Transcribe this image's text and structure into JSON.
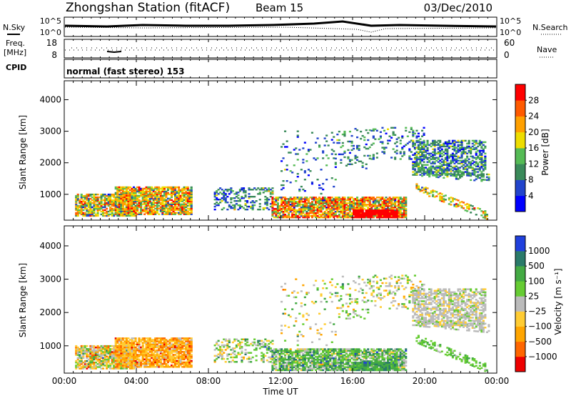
{
  "header": {
    "station": "Zhongshan Station (fitACF)",
    "beam": "Beam 15",
    "date": "03/Dec/2010"
  },
  "status_panels": {
    "nsky_label": "N.Sky",
    "nsearch_label": "N.Search",
    "freq_label": "Freq.",
    "freq_unit": "[MHz]",
    "nave_label": "Nave",
    "cpid_label": "CPID",
    "cpid_text": "normal (fast stereo) 153",
    "noise_ticks": [
      "10^5",
      "10^0"
    ],
    "freq_ticks": [
      "18",
      "8"
    ],
    "nave_ticks": [
      "60",
      "0"
    ]
  },
  "chart_data": [
    {
      "type": "heatmap",
      "name": "power",
      "ylabel": "Slant Range [km]",
      "colorbar_label": "Power [dB]",
      "yticks": [
        "1000",
        "2000",
        "3000",
        "4000"
      ],
      "ylim": [
        180,
        4600
      ],
      "colorbar_ticks": [
        "28",
        "24",
        "20",
        "16",
        "12",
        "8",
        "4"
      ],
      "colors": [
        "#0000ff",
        "#2244cc",
        "#3a8a5a",
        "#55bb55",
        "#eedd00",
        "#ffa000",
        "#ff5a00",
        "#ff0000"
      ],
      "cell_hours": 0.1,
      "cell_km": 45,
      "regions": [
        {
          "t": [
            0.6,
            4.0
          ],
          "r": [
            300,
            1000
          ],
          "c": 0.55,
          "s": 0.3,
          "d": 0.75
        },
        {
          "t": [
            2.8,
            7.0
          ],
          "r": [
            350,
            1250
          ],
          "c": 0.6,
          "s": 0.3,
          "d": 0.8
        },
        {
          "t": [
            8.3,
            11.5
          ],
          "r": [
            500,
            1200
          ],
          "c": 0.3,
          "s": 0.2,
          "d": 0.35
        },
        {
          "t": [
            11.5,
            19.0
          ],
          "r": [
            250,
            900
          ],
          "c": 0.65,
          "s": 0.35,
          "d": 0.8
        },
        {
          "t": [
            16.0,
            18.5
          ],
          "r": [
            250,
            500
          ],
          "c": 0.95,
          "s": 0.05,
          "d": 0.9
        },
        {
          "t": [
            12.0,
            15.0
          ],
          "r": [
            1000,
            3000
          ],
          "c": 0.25,
          "s": 0.15,
          "d": 0.06
        },
        {
          "t": [
            15.0,
            17.0
          ],
          "r": [
            1800,
            3100
          ],
          "c": 0.3,
          "s": 0.15,
          "d": 0.15
        },
        {
          "t": [
            17.0,
            20.0
          ],
          "r": [
            2100,
            3100
          ],
          "c": 0.3,
          "s": 0.2,
          "d": 0.18
        },
        {
          "t": [
            19.3,
            23.4
          ],
          "r": [
            1600,
            2700
          ],
          "c": 0.3,
          "s": 0.2,
          "d": 0.55
        },
        {
          "t": [
            19.5,
            23.6
          ],
          "r": [
            1700,
            1500
          ],
          "c": 0.35,
          "s": 0.15,
          "d": 0.4
        },
        {
          "t": [
            19.5,
            23.5
          ],
          "r": [
            1200,
            300
          ],
          "c": 0.55,
          "s": 0.25,
          "d": 0.45
        }
      ]
    },
    {
      "type": "heatmap",
      "name": "velocity",
      "ylabel": "Slant Range [km]",
      "xlabel": "Time UT",
      "colorbar_label": "Velocity [m s⁻¹]",
      "yticks": [
        "1000",
        "2000",
        "3000",
        "4000"
      ],
      "ylim": [
        180,
        4600
      ],
      "xticks": [
        "00:00",
        "04:00",
        "08:00",
        "12:00",
        "16:00",
        "20:00",
        "00:00"
      ],
      "xlim_hours": [
        0,
        24
      ],
      "colorbar_ticks": [
        "1000",
        "500",
        "100",
        "25",
        "−25",
        "−100",
        "−500",
        "−1000"
      ],
      "colors": [
        "#ee0000",
        "#ff6600",
        "#ffa500",
        "#ffcc33",
        "#bbbbbb",
        "#66cc33",
        "#44aa44",
        "#2a7a6a",
        "#2040dd"
      ],
      "cell_hours": 0.1,
      "cell_km": 45,
      "regions": [
        {
          "t": [
            0.6,
            4.0
          ],
          "r": [
            300,
            1000
          ],
          "c": 0.45,
          "s": 0.25,
          "d": 0.8
        },
        {
          "t": [
            2.8,
            7.0
          ],
          "r": [
            350,
            1250
          ],
          "c": 0.3,
          "s": 0.15,
          "d": 0.85
        },
        {
          "t": [
            8.3,
            11.5
          ],
          "r": [
            500,
            1200
          ],
          "c": 0.55,
          "s": 0.2,
          "d": 0.35
        },
        {
          "t": [
            11.5,
            19.0
          ],
          "r": [
            250,
            900
          ],
          "c": 0.65,
          "s": 0.2,
          "d": 0.8
        },
        {
          "t": [
            16.0,
            18.5
          ],
          "r": [
            250,
            500
          ],
          "c": 0.75,
          "s": 0.1,
          "d": 0.85
        },
        {
          "t": [
            12.0,
            15.0
          ],
          "r": [
            1000,
            3000
          ],
          "c": 0.5,
          "s": 0.2,
          "d": 0.06
        },
        {
          "t": [
            15.0,
            17.0
          ],
          "r": [
            1800,
            3100
          ],
          "c": 0.55,
          "s": 0.2,
          "d": 0.15
        },
        {
          "t": [
            17.0,
            20.0
          ],
          "r": [
            2100,
            3100
          ],
          "c": 0.5,
          "s": 0.2,
          "d": 0.2
        },
        {
          "t": [
            19.3,
            23.4
          ],
          "r": [
            1600,
            2700
          ],
          "c": 0.5,
          "s": 0.08,
          "d": 0.6
        },
        {
          "t": [
            19.5,
            23.6
          ],
          "r": [
            1700,
            1500
          ],
          "c": 0.5,
          "s": 0.08,
          "d": 0.45
        },
        {
          "t": [
            19.5,
            23.5
          ],
          "r": [
            1200,
            300
          ],
          "c": 0.62,
          "s": 0.08,
          "d": 0.45
        }
      ]
    }
  ]
}
